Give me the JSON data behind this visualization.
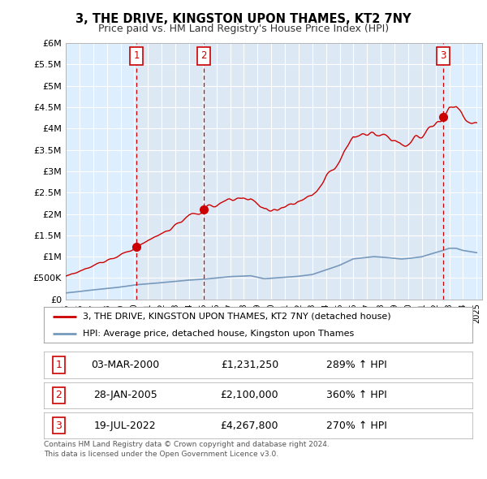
{
  "title": "3, THE DRIVE, KINGSTON UPON THAMES, KT2 7NY",
  "subtitle": "Price paid vs. HM Land Registry's House Price Index (HPI)",
  "ylim": [
    0,
    6000000
  ],
  "yticks": [
    0,
    500000,
    1000000,
    1500000,
    2000000,
    2500000,
    3000000,
    3500000,
    4000000,
    4500000,
    5000000,
    5500000,
    6000000
  ],
  "sale_year_floats": [
    2000.17,
    2005.07,
    2022.54
  ],
  "sale_prices": [
    1231250,
    2100000,
    4267800
  ],
  "sale_labels": [
    "1",
    "2",
    "3"
  ],
  "hpi_line_color": "#7799bb",
  "sale_line_color": "#cc0000",
  "annotation_box_color": "#cc0000",
  "grid_color": "#cccccc",
  "background_color": "#ddeeff",
  "shade_color": "#ccddf0",
  "legend_entries": [
    "3, THE DRIVE, KINGSTON UPON THAMES, KT2 7NY (detached house)",
    "HPI: Average price, detached house, Kingston upon Thames"
  ],
  "table_rows": [
    [
      "1",
      "03-MAR-2000",
      "£1,231,250",
      "289% ↑ HPI"
    ],
    [
      "2",
      "28-JAN-2005",
      "£2,100,000",
      "360% ↑ HPI"
    ],
    [
      "3",
      "19-JUL-2022",
      "£4,267,800",
      "270% ↑ HPI"
    ]
  ],
  "footer": "Contains HM Land Registry data © Crown copyright and database right 2024.\nThis data is licensed under the Open Government Licence v3.0."
}
